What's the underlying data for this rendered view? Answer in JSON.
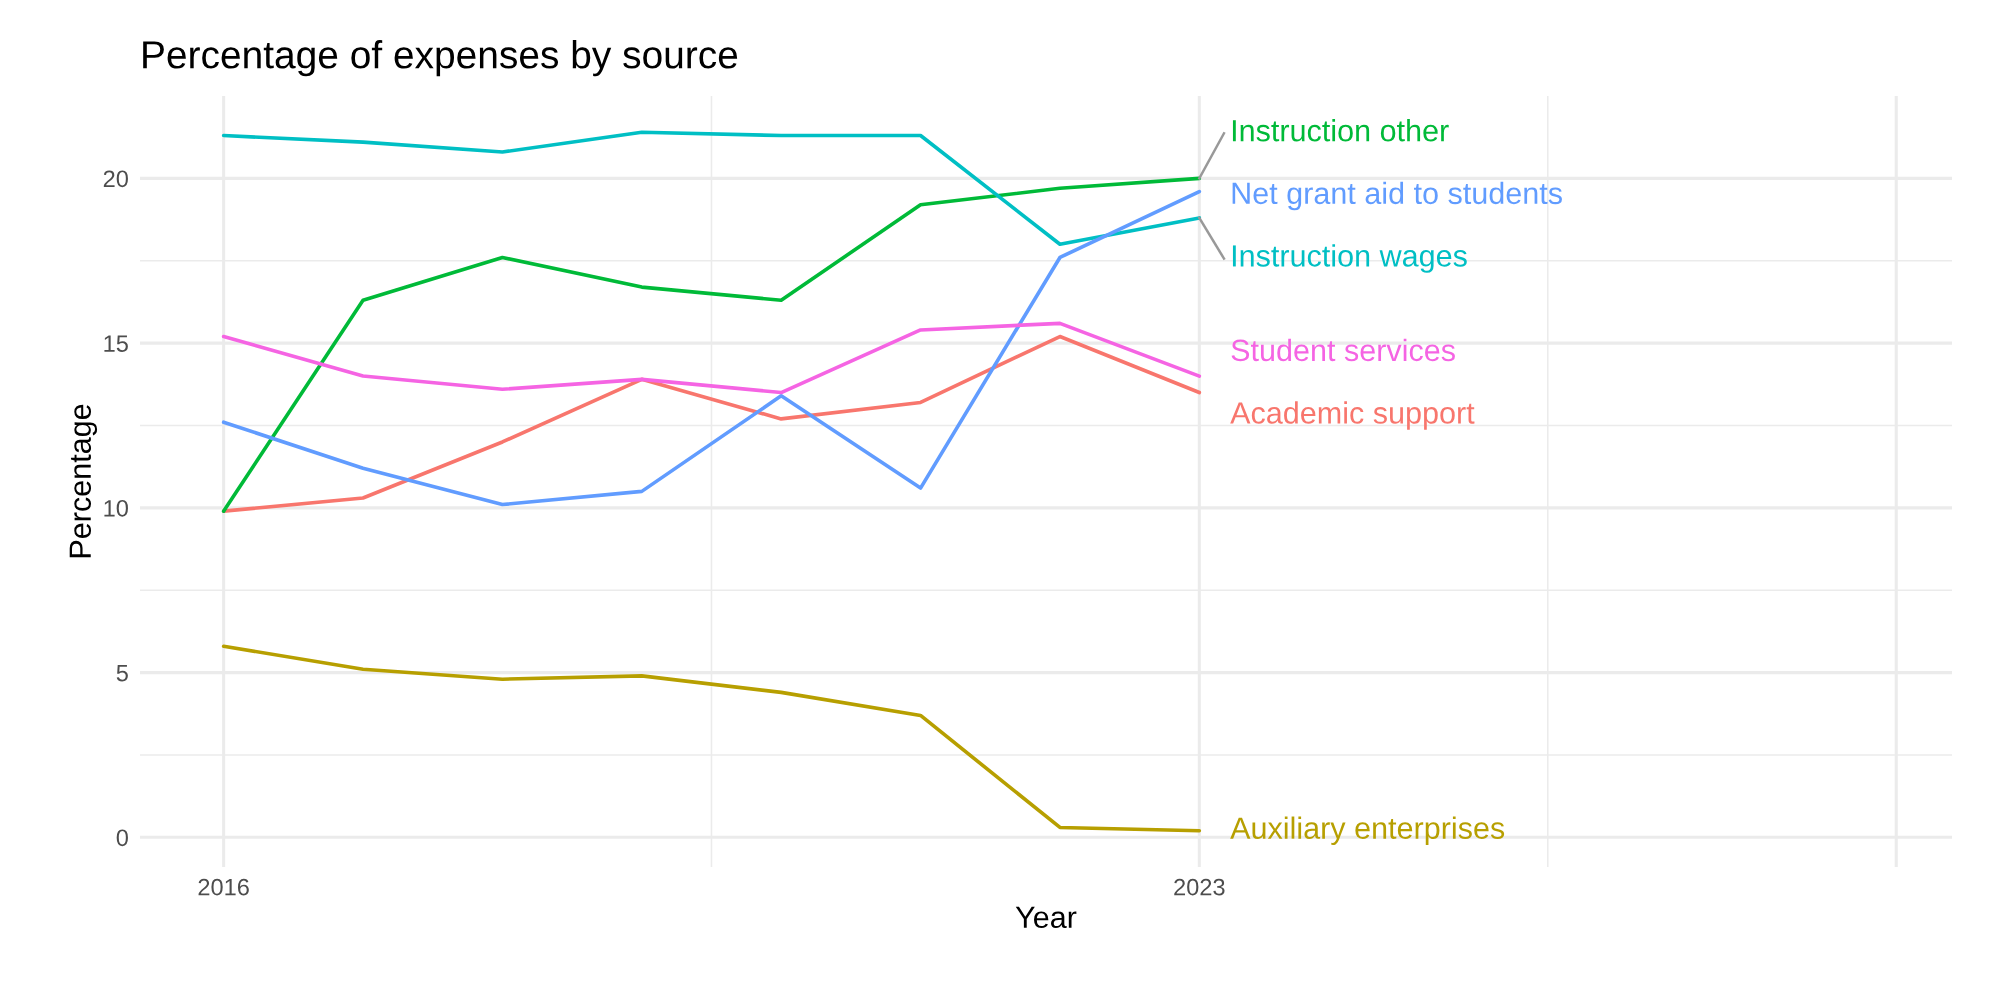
{
  "chart_data": {
    "type": "line",
    "title": "Percentage of expenses by source",
    "xlabel": "Year",
    "ylabel": "Percentage",
    "x": [
      2016,
      2017,
      2018,
      2019,
      2020,
      2021,
      2022,
      2023
    ],
    "series": [
      {
        "name": "Academic support",
        "color": "#F8766D",
        "values": [
          9.9,
          10.3,
          12.0,
          13.9,
          12.7,
          13.2,
          15.2,
          13.5
        ]
      },
      {
        "name": "Auxiliary enterprises",
        "color": "#B79F00",
        "values": [
          5.8,
          5.1,
          4.8,
          4.9,
          4.4,
          3.7,
          0.3,
          0.2
        ]
      },
      {
        "name": "Instruction other",
        "color": "#00BA38",
        "values": [
          9.9,
          16.3,
          17.6,
          16.7,
          16.3,
          19.2,
          19.7,
          20.0
        ]
      },
      {
        "name": "Instruction wages",
        "color": "#00BFC4",
        "values": [
          21.3,
          21.1,
          20.8,
          21.4,
          21.3,
          21.3,
          18.0,
          18.8
        ]
      },
      {
        "name": "Net grant aid to students",
        "color": "#619CFF",
        "values": [
          12.6,
          11.2,
          10.1,
          10.5,
          13.4,
          10.6,
          17.6,
          19.6
        ]
      },
      {
        "name": "Student services",
        "color": "#F564E3",
        "values": [
          15.2,
          14.0,
          13.6,
          13.9,
          13.5,
          15.4,
          15.6,
          14.0
        ]
      }
    ],
    "xlim": [
      2015.4,
      2028.4
    ],
    "xticks": [
      2016,
      2023,
      {
        "value": 2028,
        "label": null
      }
    ],
    "ylim": [
      -0.9,
      22.5
    ],
    "yticks": [
      0,
      5,
      10,
      15,
      20
    ],
    "grid": true,
    "legend": false,
    "line_style": "solid",
    "marker": "none"
  }
}
